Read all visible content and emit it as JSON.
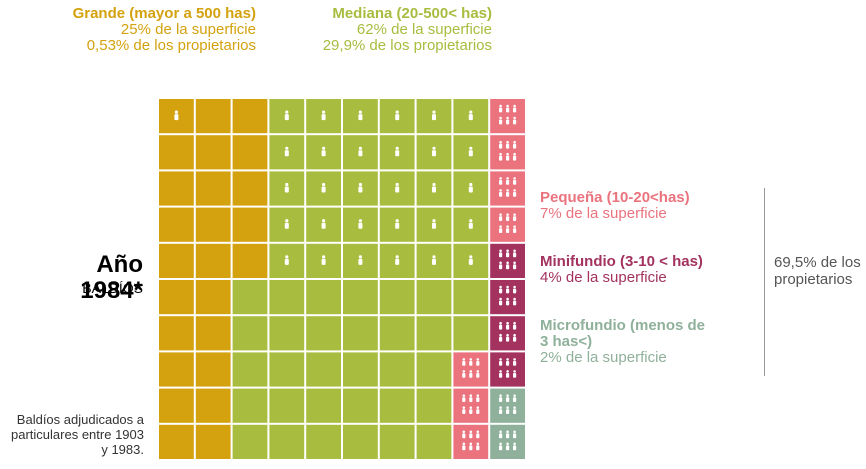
{
  "title": "Año 1984*",
  "subtitle": "BALDÍOS",
  "note": "Baldíos adjudicados a particulares entre 1903 y 1983.",
  "owners_share": "69,5% de los propietarios",
  "groups": [
    {
      "name": "Grande (mayor a 500 has)",
      "surface": "25% de la superficie",
      "owners": "0,53% de los propietarios",
      "color": "#d4a20f"
    },
    {
      "name": "Mediana (20-500< has)",
      "surface": "62% de la superficie",
      "owners": "29,9% de los propietarios",
      "color": "#a8bd3f"
    },
    {
      "name": "Pequeña (10-20<has)",
      "surface": "7% de la superficie",
      "color": "#ea737e"
    },
    {
      "name": "Minifundio (3-10 < has)",
      "surface": "4% de la superficie",
      "color": "#a3325f"
    },
    {
      "name": "Microfundio (menos de 3 has<)",
      "surface": "2% de la superficie",
      "color": "#8fb09a"
    }
  ]
}
